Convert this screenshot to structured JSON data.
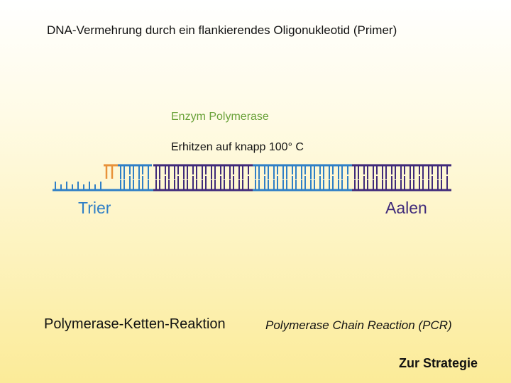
{
  "slide": {
    "title": "DNA-Vermehrung durch ein flankierendes Oligonukleotid (Primer)",
    "enzyme_label": "Enzym Polymerase",
    "heating_label": "Erhitzen auf knapp 100° C",
    "left_end_label": "Trier",
    "right_end_label": "Aalen",
    "pcr_german": "Polymerase-Ketten-Reaktion",
    "pcr_english": "Polymerase Chain Reaction (PCR)",
    "strategy_link": "Zur Strategie"
  },
  "colors": {
    "primer": "#e8923a",
    "strand_blue": "#2f7fc6",
    "strand_purple": "#3f2a7a",
    "enzyme_text": "#6aa23a"
  }
}
